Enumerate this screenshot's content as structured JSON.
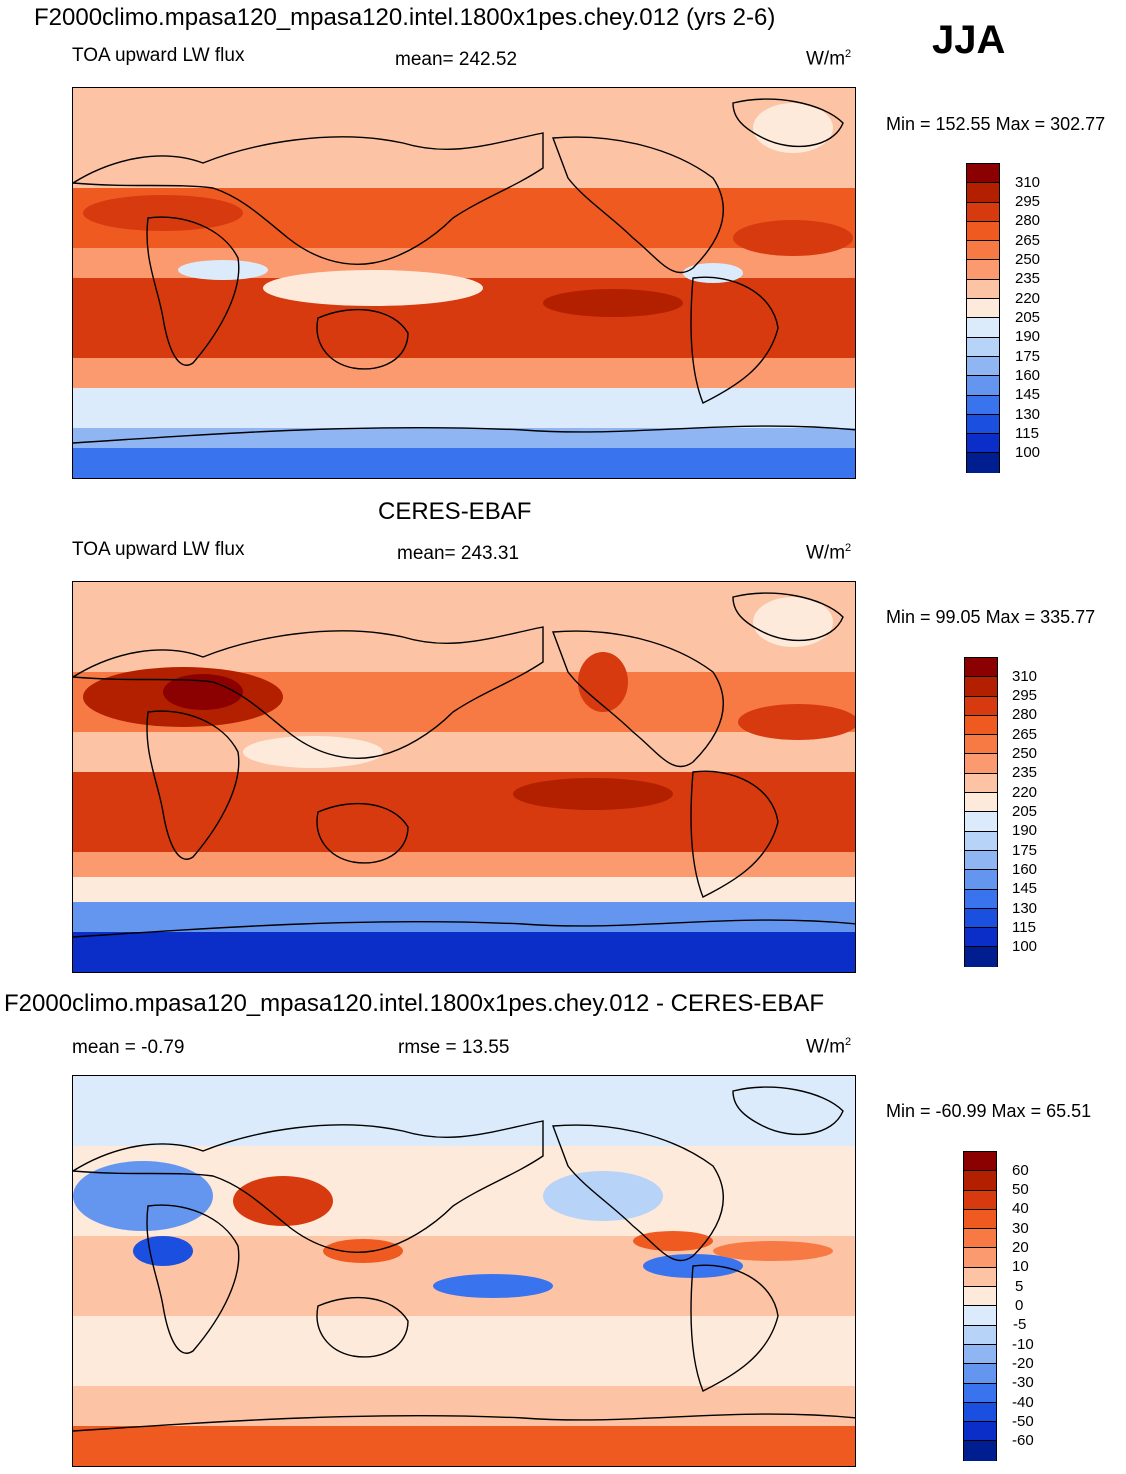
{
  "page": {
    "main_title": "F2000climo.mpasa120_mpasa120.intel.1800x1pes.chey.012 (yrs 2-6)",
    "season": "JJA"
  },
  "panels": {
    "model": {
      "variable": "TOA upward LW flux",
      "stat": "mean= 242.52",
      "units_base": "W/m",
      "units_exp": "2",
      "minmax": "Min = 152.55 Max = 302.77"
    },
    "obs": {
      "heading": "CERES-EBAF",
      "variable": "TOA upward LW flux",
      "stat": "mean= 243.31",
      "units_base": "W/m",
      "units_exp": "2",
      "minmax": "Min =  99.05 Max = 335.77"
    },
    "diff": {
      "heading": "F2000climo.mpasa120_mpasa120.intel.1800x1pes.chey.012 - CERES-EBAF",
      "stat": "mean =  -0.79",
      "rmse": "rmse =  13.55",
      "units_base": "W/m",
      "units_exp": "2",
      "minmax": "Min = -60.99 Max =  65.51"
    }
  },
  "chart_data": [
    {
      "type": "heatmap",
      "title": "TOA upward LW flux (model, JJA)",
      "units": "W/m2",
      "mean": 242.52,
      "min": 152.55,
      "max": 302.77,
      "colorbar_levels": [
        "310",
        "295",
        "280",
        "265",
        "250",
        "235",
        "220",
        "205",
        "190",
        "175",
        "160",
        "145",
        "130",
        "115",
        "100"
      ],
      "colorbar_colors": [
        "#8b0000",
        "#b22000",
        "#d63a0e",
        "#ef5a20",
        "#f77a45",
        "#fb9a6e",
        "#fcc3a4",
        "#fdeadb",
        "#dcebfb",
        "#b7d3f7",
        "#8fb5f2",
        "#6596ef",
        "#3a73ee",
        "#1a4fe0",
        "#0a2ec7",
        "#001e8f"
      ]
    },
    {
      "type": "heatmap",
      "title": "TOA upward LW flux (CERES-EBAF, JJA)",
      "units": "W/m2",
      "mean": 243.31,
      "min": 99.05,
      "max": 335.77,
      "colorbar_levels": [
        "310",
        "295",
        "280",
        "265",
        "250",
        "235",
        "220",
        "205",
        "190",
        "175",
        "160",
        "145",
        "130",
        "115",
        "100"
      ],
      "colorbar_colors": [
        "#8b0000",
        "#b22000",
        "#d63a0e",
        "#ef5a20",
        "#f77a45",
        "#fb9a6e",
        "#fcc3a4",
        "#fdeadb",
        "#dcebfb",
        "#b7d3f7",
        "#8fb5f2",
        "#6596ef",
        "#3a73ee",
        "#1a4fe0",
        "#0a2ec7",
        "#001e8f"
      ]
    },
    {
      "type": "heatmap",
      "title": "Model - CERES-EBAF difference",
      "units": "W/m2",
      "mean": -0.79,
      "rmse": 13.55,
      "min": -60.99,
      "max": 65.51,
      "colorbar_levels": [
        "60",
        "50",
        "40",
        "30",
        "20",
        "10",
        "5",
        "0",
        "-5",
        "-10",
        "-20",
        "-30",
        "-40",
        "-50",
        "-60"
      ],
      "colorbar_colors": [
        "#8b0000",
        "#b22000",
        "#d63a0e",
        "#ef5a20",
        "#f77a45",
        "#fb9a6e",
        "#fcc3a4",
        "#fdeadb",
        "#dcebfb",
        "#b7d3f7",
        "#8fb5f2",
        "#6596ef",
        "#3a73ee",
        "#1a4fe0",
        "#0a2ec7",
        "#001e8f"
      ]
    }
  ]
}
